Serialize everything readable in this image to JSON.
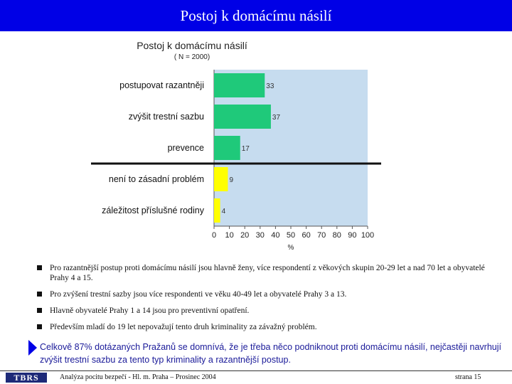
{
  "header": {
    "title": "Postoj k domácímu násilí"
  },
  "chart_data": {
    "type": "bar",
    "orientation": "horizontal",
    "title": "Postoj k domácímu násilí",
    "subtitle": "( N = 2000)",
    "categories": [
      "postupovat razantněji",
      "zvýšit trestní sazbu",
      "prevence",
      "není to zásadní problém",
      "záležitost příslušné rodiny"
    ],
    "values": [
      33,
      37,
      17,
      9,
      4
    ],
    "bar_colors": [
      "#1fc97a",
      "#1fc97a",
      "#1fc97a",
      "#ffff00",
      "#ffff00"
    ],
    "xlabel": "%",
    "xlim": [
      0,
      100
    ],
    "x_ticks": [
      "0",
      "10",
      "20",
      "30",
      "40",
      "50",
      "60",
      "70",
      "80",
      "90",
      "100"
    ],
    "plot_background": "#c6dcef",
    "divider_after_index": 2
  },
  "bullets": [
    "Pro razantnější postup proti domácímu násilí jsou hlavně ženy, více respondentí z věkových skupin 20-29 let a nad 70 let a obyvatelé Prahy 4 a 15.",
    "Pro zvýšení trestní sazby jsou více respondenti ve věku 40-49 let a obyvatelé Prahy 3 a 13.",
    "Hlavně obyvatelé Prahy 1 a 14 jsou pro preventivní opatření.",
    "Především mladí do 19 let nepovažují tento druh kriminality za závažný problém."
  ],
  "summary": "Celkově 87% dotázaných Pražanů se domnívá, že je třeba něco podniknout proti domácímu násilí, nejčastěji navrhují zvýšit trestní sazbu za tento typ kriminality a razantnější postup.",
  "footer": {
    "logo_text": "TBRS",
    "left": "Analýza pocitu bezpečí - Hl. m. Praha – Prosinec 2004",
    "right": "strana 15"
  },
  "colors": {
    "header_bg": "#0000e6",
    "accent": "#1a1a99"
  }
}
